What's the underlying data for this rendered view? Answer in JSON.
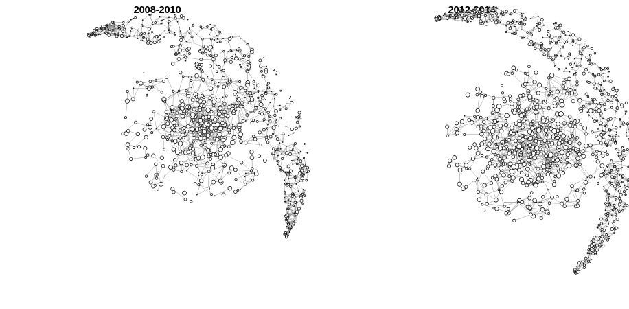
{
  "panels": [
    {
      "title": "2008-2010"
    },
    {
      "title": "2012-2014"
    }
  ],
  "colors": {
    "edge": "#8a8a8a",
    "node_stroke": "#111111",
    "background": "#ffffff"
  }
}
